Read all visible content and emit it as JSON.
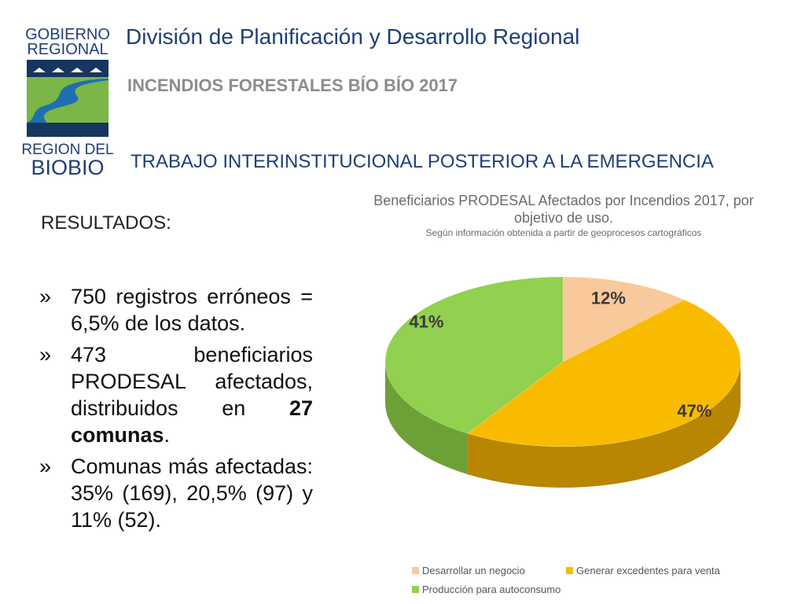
{
  "header": {
    "logo_text": {
      "line1": "GOBIERNO",
      "line2": "REGIONAL",
      "line3": "REGION DEL",
      "line4": "BIOBIO"
    },
    "title": "División de Planificación y Desarrollo Regional",
    "subtitle": "INCENDIOS FORESTALES BÍO BÍO 2017",
    "section": "TRABAJO INTERINSTITUCIONAL POSTERIOR A LA EMERGENCIA"
  },
  "results": {
    "label": "RESULTADOS:",
    "bullet_mark": "»",
    "items": [
      {
        "text": "750 registros erróneos = 6,5% de los datos."
      },
      {
        "text_before": "473 beneficiarios PRODESAL afectados, distribuidos en ",
        "bold": "27 comunas",
        "text_after": "."
      },
      {
        "text": "Comunas más afectadas: 35% (169), 20,5% (97) y 11% (52)."
      }
    ]
  },
  "chart_data": {
    "type": "pie",
    "title": "Beneficiarios PRODESAL Afectados por Incendios 2017, por objetivo de uso.",
    "subtitle": "Según información obtenida a partir de geoprocesos cartográficos",
    "categories": [
      "Desarrollar un negocio",
      "Generar excedentes para venta",
      "Producción para autoconsumo"
    ],
    "values": [
      12,
      47,
      41
    ],
    "data_labels": [
      "12%",
      "47%",
      "41%"
    ],
    "colors": [
      "#f8c99a",
      "#f9bb00",
      "#92d050"
    ],
    "side_colors": [
      "#c89a6a",
      "#b88600",
      "#6ea038"
    ],
    "legend_position": "bottom",
    "style": "3d"
  }
}
